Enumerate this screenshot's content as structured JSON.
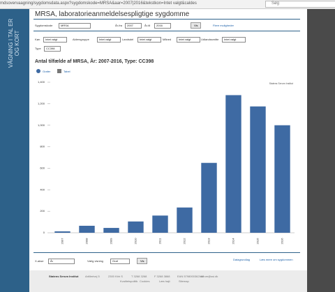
{
  "browser": {
    "url": "mdsovervaagning/sygdomsdata.aspx?sygdomskode=MRSA&aar=2007|2016&tekstkon=Intet valgt&caldes",
    "search": "Søg"
  },
  "sidebar": {
    "text": "VÅGNING I TAL ER OG KORT"
  },
  "header": {
    "title": "MRSA, laboratorieanmeldelsespligtige sygdomme"
  },
  "form": {
    "fields": [
      {
        "label": "Sygdomskode",
        "value": "MRSA"
      },
      {
        "label": "År-fra",
        "value": "2007"
      },
      {
        "label": "År-til",
        "value": "2016"
      }
    ],
    "button": "Vis",
    "link": "Flere muligheder"
  },
  "filters": [
    {
      "label": "Køn",
      "value": "Intet valgt"
    },
    {
      "label": "Aldersgruppe",
      "value": "Intet valgt"
    },
    {
      "label": "Landsdel",
      "value": "Intet valgt"
    },
    {
      "label": "Måned",
      "value": "Intet valgt"
    },
    {
      "label": "Udlandssmitte",
      "value": "Intet valgt"
    },
    {
      "label": "Type",
      "value": "CC398"
    }
  ],
  "tabs": [
    "Grafer",
    "Tabel"
  ],
  "chart_data": {
    "type": "bar",
    "title": "Antal tilfælde af MRSA, År: 2007-2016, Type: CC398",
    "source": "Statens Serum Institut",
    "categories": [
      "2007",
      "2008",
      "2009",
      "2010",
      "2011",
      "2012",
      "2013",
      "2014",
      "2015",
      "2016"
    ],
    "values": [
      13,
      65,
      45,
      105,
      160,
      235,
      650,
      1280,
      1175,
      1000
    ],
    "color": "#3e6aa3",
    "ylim": [
      0,
      1400
    ],
    "yticks": [
      0,
      200,
      400,
      600,
      800,
      {
        "value": 1000,
        "label": "1,000"
      },
      {
        "value": 1200,
        "label": "1,200"
      },
      {
        "value": 1400,
        "label": "1,400"
      }
    ],
    "grid": false
  },
  "controls": {
    "fields": [
      {
        "label": "X-akse",
        "value": "År"
      },
      {
        "label": "Vælg visning",
        "value": "Graf"
      }
    ],
    "button": "Vis",
    "links": [
      "Datagrundlag",
      "Læs mere om sygdommen"
    ]
  },
  "footer": {
    "name": "Statens Serum Institut",
    "items": [
      "Artillerivej 5",
      "2300 Kbh S",
      "T 3268 3268",
      "F 3268 3868",
      "EAN 5798000362192",
      "serum@ssi.dk"
    ],
    "links": [
      "Kvalitetspolitik",
      "Cookies",
      "Læs højt",
      "Sitemap"
    ]
  }
}
